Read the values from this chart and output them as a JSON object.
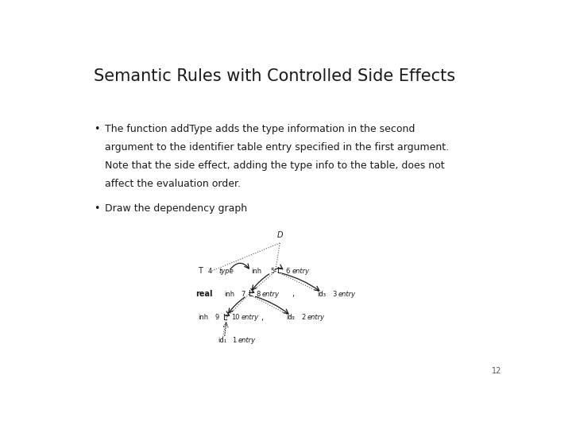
{
  "title": "Semantic Rules with Controlled Side Effects",
  "bullet1_lines": [
    "The function addType adds the type information in the second",
    "argument to the identifier table entry specified in the first argument.",
    "Note that the side effect, adding the type info to the table, does not",
    "affect the evaluation order."
  ],
  "bullet2": "Draw the dependency graph",
  "slide_number": "12",
  "bg_color": "#ffffff",
  "title_fontsize": 15,
  "body_fontsize": 9,
  "slide_num_fontsize": 7,
  "graph_fontsize": 7,
  "graph_fontsize_small": 6
}
